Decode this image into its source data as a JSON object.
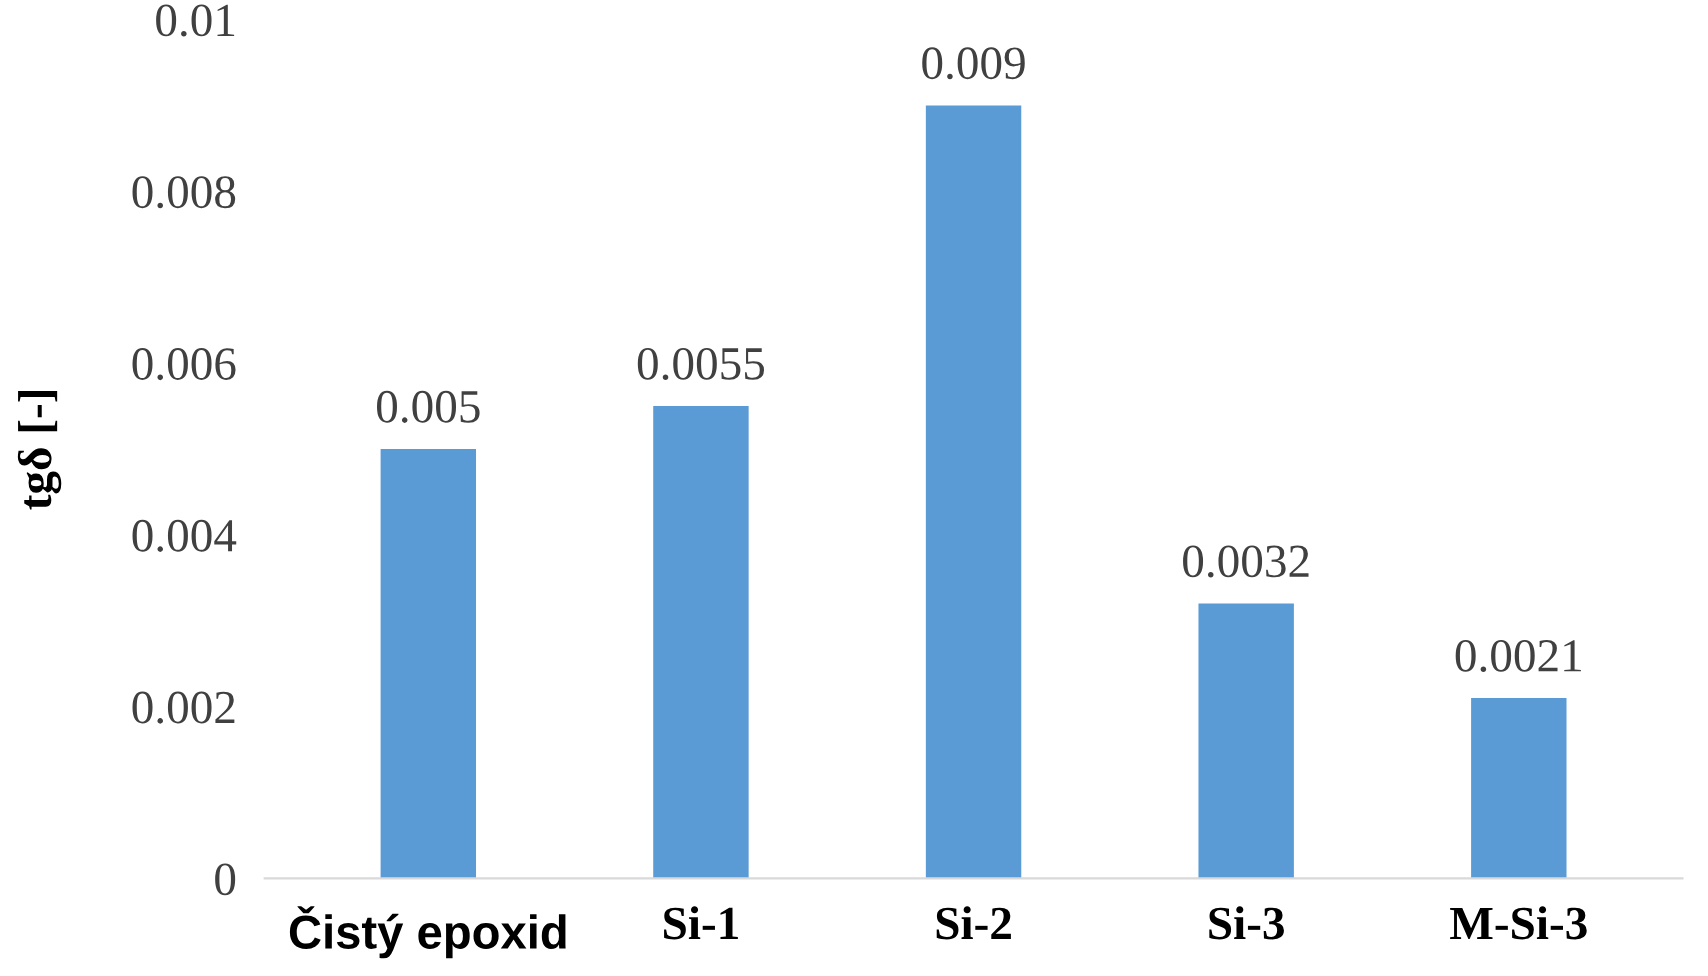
{
  "chart_data": {
    "type": "bar",
    "ylabel": "tgδ [-]",
    "categories": [
      "Čistý epoxid",
      "Si-1",
      "Si-2",
      "Si-3",
      "M-Si-3"
    ],
    "values": [
      0.005,
      0.0055,
      0.009,
      0.0032,
      0.0021
    ],
    "color": "#5b9bd5",
    "ylim": [
      0,
      0.01
    ],
    "yticks": [
      {
        "value": 0,
        "label": "0"
      },
      0.002,
      0.004,
      0.006,
      0.008,
      0.01
    ],
    "data_labels": true,
    "grid": false
  }
}
